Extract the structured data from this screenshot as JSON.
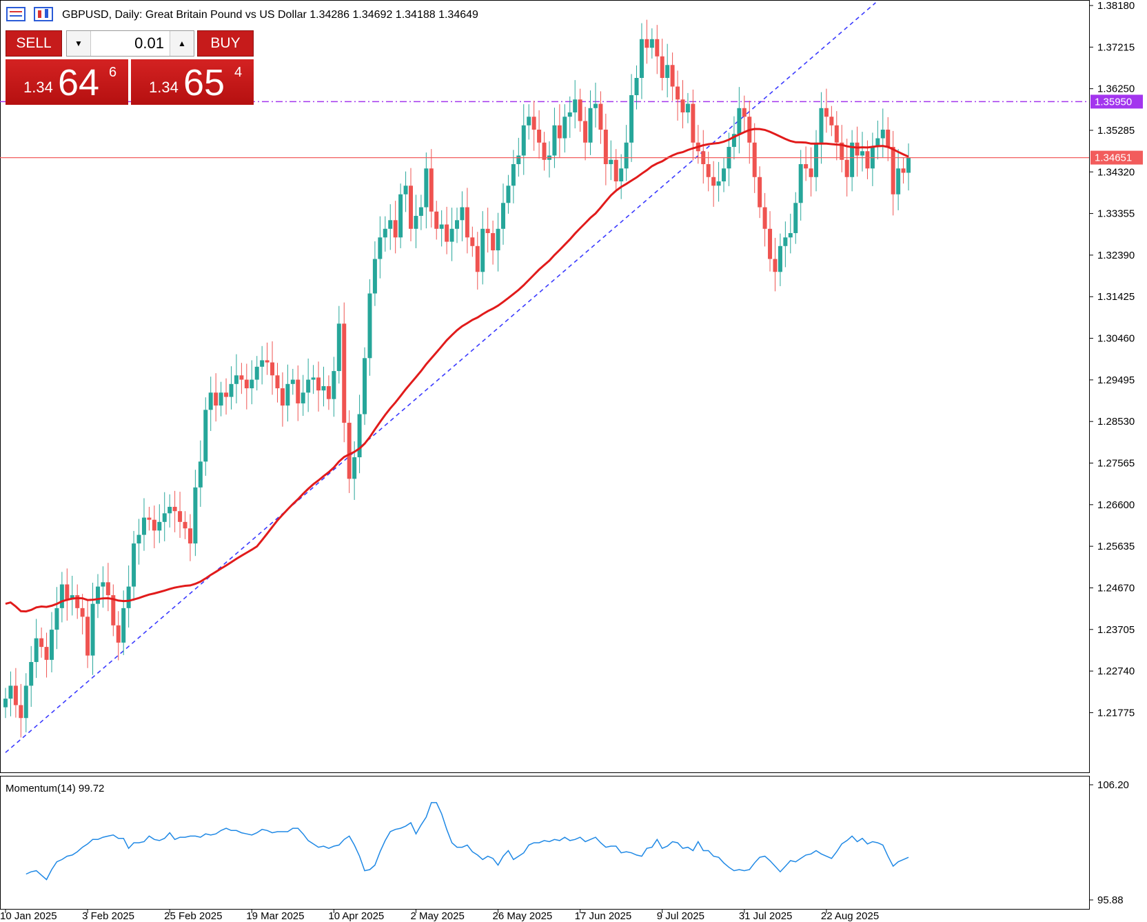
{
  "header": {
    "symbol_line": "GBPUSD, Daily:  Great Britain Pound vs US Dollar  1.34286 1.34692 1.34188 1.34649"
  },
  "trade_panel": {
    "sell_label": "SELL",
    "buy_label": "BUY",
    "lot_value": "0.01",
    "sell_quote": {
      "prefix": "1.34",
      "big": "64",
      "sup": "6"
    },
    "buy_quote": {
      "prefix": "1.34",
      "big": "65",
      "sup": "4"
    },
    "color": "#c61b1b"
  },
  "chart_data": [
    {
      "type": "candlestick",
      "symbol": "GBPUSD",
      "timeframe": "Daily",
      "ohlc_header": {
        "open": 1.34286,
        "high": 1.34692,
        "low": 1.34188,
        "close": 1.34649
      },
      "y_ticks": [
        "1.38180",
        "1.37215",
        "1.36250",
        "1.35285",
        "1.34320",
        "1.33355",
        "1.32390",
        "1.31425",
        "1.30460",
        "1.29495",
        "1.28530",
        "1.27565",
        "1.26600",
        "1.25635",
        "1.24670",
        "1.23705",
        "1.22740",
        "1.21775"
      ],
      "ylim": [
        1.2055,
        1.3818
      ],
      "x_ticks": [
        "10 Jan 2025",
        "3 Feb 2025",
        "25 Feb 2025",
        "19 Mar 2025",
        "10 Apr 2025",
        "2 May 2025",
        "26 May 2025",
        "17 Jun 2025",
        "9 Jul 2025",
        "31 Jul 2025",
        "22 Aug 2025"
      ],
      "closes": [
        1.221,
        1.224,
        1.2195,
        1.2165,
        1.224,
        1.2295,
        1.235,
        1.233,
        1.23,
        1.237,
        1.242,
        1.2475,
        1.244,
        1.245,
        1.242,
        1.24,
        1.231,
        1.243,
        1.247,
        1.248,
        1.245,
        1.238,
        1.234,
        1.242,
        1.247,
        1.257,
        1.259,
        1.263,
        1.2625,
        1.26,
        1.262,
        1.264,
        1.2655,
        1.2645,
        1.262,
        1.2605,
        1.257,
        1.27,
        1.276,
        1.288,
        1.292,
        1.289,
        1.292,
        1.291,
        1.294,
        1.296,
        1.295,
        1.293,
        1.295,
        1.298,
        1.2995,
        1.299,
        1.296,
        1.293,
        1.289,
        1.294,
        1.295,
        1.2895,
        1.292,
        1.295,
        1.2955,
        1.2925,
        1.2935,
        1.2905,
        1.297,
        1.308,
        1.285,
        1.272,
        1.277,
        1.287,
        1.3,
        1.315,
        1.323,
        1.328,
        1.33,
        1.332,
        1.328,
        1.338,
        1.34,
        1.33,
        1.333,
        1.335,
        1.344,
        1.334,
        1.33,
        1.331,
        1.327,
        1.33,
        1.332,
        1.335,
        1.328,
        1.326,
        1.32,
        1.33,
        1.329,
        1.325,
        1.33,
        1.336,
        1.34,
        1.345,
        1.347,
        1.354,
        1.356,
        1.353,
        1.35,
        1.346,
        1.347,
        1.354,
        1.351,
        1.356,
        1.357,
        1.36,
        1.355,
        1.35,
        1.358,
        1.359,
        1.353,
        1.345,
        1.346,
        1.341,
        1.344,
        1.35,
        1.361,
        1.365,
        1.374,
        1.372,
        1.374,
        1.37,
        1.365,
        1.368,
        1.363,
        1.36,
        1.357,
        1.359,
        1.35,
        1.348,
        1.345,
        1.342,
        1.34,
        1.341,
        1.344,
        1.349,
        1.352,
        1.358,
        1.356,
        1.35,
        1.342,
        1.335,
        1.33,
        1.323,
        1.32,
        1.326,
        1.328,
        1.329,
        1.336,
        1.345,
        1.344,
        1.342,
        1.35,
        1.358,
        1.356,
        1.354,
        1.35,
        1.346,
        1.342,
        1.35,
        1.347,
        1.348,
        1.344,
        1.349,
        1.351,
        1.353,
        1.349,
        1.338,
        1.344,
        1.343,
        1.3465
      ],
      "ma_color": "#e11b1b",
      "up_color": "#26a69a",
      "down_color": "#ef5350",
      "price_line": {
        "value": 1.34651,
        "label": "1.34651",
        "color": "#f25c5c"
      },
      "resistance_line": {
        "value": 1.3595,
        "label": "1.35950",
        "color": "#a335ee"
      },
      "trend_line": {
        "from": [
          "10 Jan 2025",
          1.2085
        ],
        "to": [
          "22 Aug 2025",
          1.3815
        ],
        "color": "#3a3aff"
      }
    },
    {
      "type": "line",
      "title": "Momentum(14) 99.72",
      "series": [
        {
          "name": "Momentum(14)",
          "values": [
            98.2,
            98.4,
            98.5,
            98.1,
            97.7,
            98.6,
            99.3,
            99.5,
            99.8,
            99.9,
            100.2,
            100.6,
            100.9,
            101.3,
            101.3,
            101.5,
            101.6,
            101.7,
            101.4,
            101.4,
            100.5,
            101.0,
            101.0,
            101.1,
            101.6,
            101.3,
            101.2,
            101.4,
            101.9,
            101.3,
            101.5,
            101.5,
            101.6,
            101.6,
            101.5,
            101.8,
            101.7,
            101.8,
            102.1,
            102.3,
            102.1,
            102.1,
            101.9,
            101.8,
            101.7,
            101.9,
            102.2,
            102.1,
            101.9,
            102.0,
            102.0,
            102.0,
            102.3,
            102.3,
            101.8,
            101.2,
            100.9,
            100.6,
            100.7,
            100.5,
            100.7,
            100.8,
            101.3,
            101.6,
            100.8,
            99.8,
            98.5,
            98.6,
            99.0,
            100.2,
            101.2,
            102.0,
            102.2,
            102.3,
            102.5,
            102.8,
            101.8,
            102.6,
            103.3,
            104.6,
            104.6,
            103.6,
            102.2,
            101.0,
            100.6,
            100.6,
            100.8,
            100.2,
            99.9,
            99.5,
            99.8,
            99.6,
            99.0,
            99.8,
            100.3,
            99.5,
            99.8,
            100.1,
            100.8,
            101.0,
            101.0,
            101.2,
            101.1,
            101.3,
            101.2,
            101.5,
            101.2,
            101.3,
            101.5,
            101.1,
            101.3,
            101.5,
            101.0,
            100.6,
            100.7,
            100.7,
            100.1,
            100.2,
            100.1,
            99.9,
            99.8,
            100.5,
            100.6,
            101.3,
            100.5,
            100.7,
            101.1,
            101.0,
            100.5,
            100.6,
            100.3,
            101.1,
            100.3,
            100.3,
            99.8,
            99.7,
            99.2,
            98.8,
            98.5,
            98.6,
            98.5,
            98.6,
            99.2,
            99.7,
            99.8,
            99.4,
            98.9,
            98.4,
            98.9,
            99.4,
            99.3,
            99.6,
            99.9,
            100.0,
            100.3,
            100.0,
            99.8,
            99.6,
            100.2,
            100.9,
            101.2,
            101.6,
            101.1,
            101.4,
            100.9,
            101.1,
            101.0,
            100.8,
            99.8,
            98.9,
            99.3,
            99.5,
            99.7
          ]
        }
      ],
      "y_ticks": [
        "106.20",
        "95.88"
      ],
      "ylim": [
        95.88,
        106.2
      ],
      "color": "#1e88e5"
    }
  ]
}
